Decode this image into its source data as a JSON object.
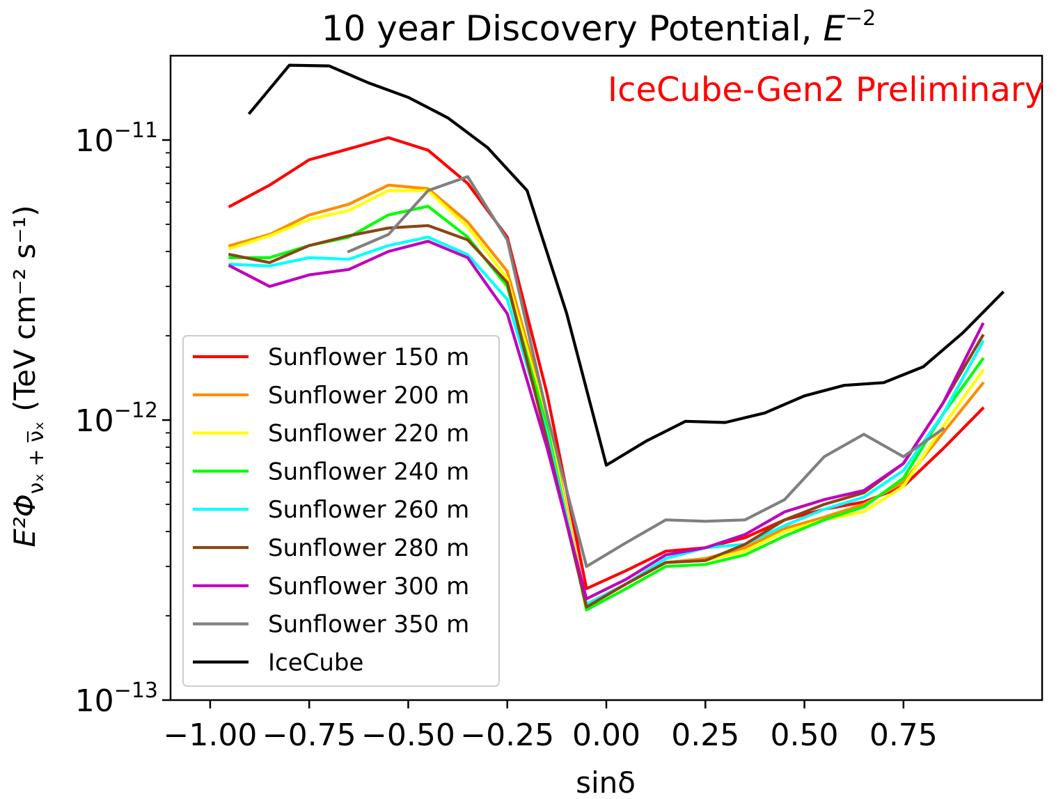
{
  "chart_data": {
    "type": "line",
    "title": "10 year Discovery Potential,",
    "title_math": {
      "base": "E",
      "exponent": "−2"
    },
    "xlabel": "sinδ",
    "ylabel": {
      "prefix": "E²Φ",
      "subscript": "νₓ + ν̅ₓ",
      "units": "(TeV cm⁻² s⁻¹)"
    },
    "annotation": "IceCube-Gen2 Preliminary",
    "xlim": [
      -1.1,
      1.1
    ],
    "ylim": [
      1e-13,
      2e-11
    ],
    "yscale": "log",
    "xticks": [
      {
        "value": -1.0,
        "label": "−1.00"
      },
      {
        "value": -0.75,
        "label": "−0.75"
      },
      {
        "value": -0.5,
        "label": "−0.50"
      },
      {
        "value": -0.25,
        "label": "−0.25"
      },
      {
        "value": 0.0,
        "label": "0.00"
      },
      {
        "value": 0.25,
        "label": "0.25"
      },
      {
        "value": 0.5,
        "label": "0.50"
      },
      {
        "value": 0.75,
        "label": "0.75"
      }
    ],
    "yticks": [
      {
        "value": 1e-13,
        "base": "10",
        "exp": "−13"
      },
      {
        "value": 1e-12,
        "base": "10",
        "exp": "−12"
      },
      {
        "value": 1e-11,
        "base": "10",
        "exp": "−11"
      }
    ],
    "legend_position": "lower-left",
    "series": [
      {
        "name": "Sunflower 150 m",
        "color": "#ff0000",
        "x": [
          -0.95,
          -0.85,
          -0.75,
          -0.65,
          -0.55,
          -0.45,
          -0.35,
          -0.25,
          -0.15,
          -0.05,
          0.05,
          0.15,
          0.25,
          0.35,
          0.45,
          0.55,
          0.65,
          0.75,
          0.85,
          0.95
        ],
        "y": [
          5.8e-12,
          6.9e-12,
          8.5e-12,
          9.3e-12,
          1.02e-11,
          9.2e-12,
          7e-12,
          4.5e-12,
          1.25e-12,
          2.5e-13,
          2.9e-13,
          3.4e-13,
          3.5e-13,
          3.8e-13,
          4.4e-13,
          4.8e-13,
          5.1e-13,
          5.8e-13,
          7.9e-13,
          1.1e-12
        ]
      },
      {
        "name": "Sunflower 200 m",
        "color": "#ff8c00",
        "x": [
          -0.95,
          -0.85,
          -0.75,
          -0.65,
          -0.55,
          -0.45,
          -0.35,
          -0.25,
          -0.15,
          -0.05,
          0.05,
          0.15,
          0.25,
          0.35,
          0.45,
          0.55,
          0.65,
          0.75,
          0.85,
          0.95
        ],
        "y": [
          4.2e-12,
          4.6e-12,
          5.4e-12,
          5.9e-12,
          6.9e-12,
          6.7e-12,
          5.1e-12,
          3.4e-12,
          1.05e-12,
          2.2e-13,
          2.6e-13,
          3.1e-13,
          3.2e-13,
          3.5e-13,
          4.1e-13,
          4.5e-13,
          5e-13,
          6e-13,
          9e-13,
          1.35e-12
        ]
      },
      {
        "name": "Sunflower 220 m",
        "color": "#ffff00",
        "x": [
          -0.95,
          -0.85,
          -0.75,
          -0.65,
          -0.55,
          -0.45,
          -0.35,
          -0.25,
          -0.15,
          -0.05,
          0.05,
          0.15,
          0.25,
          0.35,
          0.45,
          0.55,
          0.65,
          0.75,
          0.85,
          0.95
        ],
        "y": [
          4.1e-12,
          4.55e-12,
          5.2e-12,
          5.6e-12,
          6.6e-12,
          6.6e-12,
          4.9e-12,
          3.2e-12,
          1e-12,
          2.2e-13,
          2.6e-13,
          3.1e-13,
          3.15e-13,
          3.4e-13,
          4e-13,
          4.4e-13,
          4.7e-13,
          5.8e-13,
          9.5e-13,
          1.5e-12
        ]
      },
      {
        "name": "Sunflower 240 m",
        "color": "#00ff00",
        "x": [
          -0.95,
          -0.85,
          -0.75,
          -0.65,
          -0.55,
          -0.45,
          -0.35,
          -0.25,
          -0.15,
          -0.05,
          0.05,
          0.15,
          0.25,
          0.35,
          0.45,
          0.55,
          0.65,
          0.75,
          0.85,
          0.95
        ],
        "y": [
          3.8e-12,
          3.8e-12,
          4.2e-12,
          4.5e-12,
          5.4e-12,
          5.8e-12,
          4.5e-12,
          3e-12,
          9.5e-13,
          2.1e-13,
          2.5e-13,
          3e-13,
          3.05e-13,
          3.3e-13,
          3.85e-13,
          4.4e-13,
          4.9e-13,
          6.2e-13,
          1.05e-12,
          1.65e-12
        ]
      },
      {
        "name": "Sunflower 260 m",
        "color": "#00ffff",
        "x": [
          -0.95,
          -0.85,
          -0.75,
          -0.65,
          -0.55,
          -0.45,
          -0.35,
          -0.25,
          -0.15,
          -0.05,
          0.05,
          0.15,
          0.25,
          0.35,
          0.45,
          0.55,
          0.65,
          0.75,
          0.85,
          0.95
        ],
        "y": [
          3.6e-12,
          3.55e-12,
          3.8e-12,
          3.75e-12,
          4.2e-12,
          4.5e-12,
          3.9e-12,
          2.7e-12,
          9e-13,
          2.2e-13,
          2.6e-13,
          3.2e-13,
          3.5e-13,
          3.6e-13,
          4.2e-13,
          4.8e-13,
          5.3e-13,
          6.6e-13,
          1.05e-12,
          1.9e-12
        ]
      },
      {
        "name": "Sunflower 280 m",
        "color": "#8b4513",
        "x": [
          -0.95,
          -0.85,
          -0.75,
          -0.65,
          -0.55,
          -0.45,
          -0.35,
          -0.25,
          -0.15,
          -0.05,
          0.05,
          0.15,
          0.25,
          0.35,
          0.45,
          0.55,
          0.65,
          0.75,
          0.85,
          0.95
        ],
        "y": [
          3.9e-12,
          3.65e-12,
          4.2e-12,
          4.55e-12,
          4.85e-12,
          4.95e-12,
          4.4e-12,
          3.1e-12,
          8.5e-13,
          2.15e-13,
          2.6e-13,
          3.1e-13,
          3.15e-13,
          3.6e-13,
          4.4e-13,
          5e-13,
          5.5e-13,
          7e-13,
          1.15e-12,
          2e-12
        ]
      },
      {
        "name": "Sunflower 300 m",
        "color": "#bf00bf",
        "x": [
          -0.95,
          -0.85,
          -0.75,
          -0.65,
          -0.55,
          -0.45,
          -0.35,
          -0.25,
          -0.15,
          -0.05,
          0.05,
          0.15,
          0.25,
          0.35,
          0.45,
          0.55,
          0.65,
          0.75,
          0.85,
          0.95
        ],
        "y": [
          3.55e-12,
          3e-12,
          3.3e-12,
          3.45e-12,
          4e-12,
          4.35e-12,
          3.8e-12,
          2.4e-12,
          8e-13,
          2.3e-13,
          2.7e-13,
          3.3e-13,
          3.5e-13,
          3.9e-13,
          4.7e-13,
          5.2e-13,
          5.6e-13,
          7e-13,
          1.15e-12,
          2.2e-12
        ]
      },
      {
        "name": "Sunflower 350 m",
        "color": "#808080",
        "x": [
          -0.65,
          -0.55,
          -0.45,
          -0.35,
          -0.25,
          -0.15,
          -0.05,
          0.05,
          0.15,
          0.25,
          0.35,
          0.45,
          0.55,
          0.65,
          0.75,
          0.85
        ],
        "y": [
          4e-12,
          4.6e-12,
          6.6e-12,
          7.4e-12,
          4.4e-12,
          1.05e-12,
          3e-13,
          3.65e-13,
          4.4e-13,
          4.35e-13,
          4.4e-13,
          5.2e-13,
          7.4e-13,
          8.9e-13,
          7.4e-13,
          9.3e-13
        ]
      },
      {
        "name": "IceCube",
        "color": "#000000",
        "x": [
          -0.9,
          -0.8,
          -0.7,
          -0.6,
          -0.5,
          -0.4,
          -0.3,
          -0.2,
          -0.1,
          0.0,
          0.1,
          0.2,
          0.3,
          0.4,
          0.5,
          0.6,
          0.7,
          0.8,
          0.9,
          1.0
        ],
        "y": [
          1.25e-11,
          1.85e-11,
          1.84e-11,
          1.6e-11,
          1.42e-11,
          1.2e-11,
          9.4e-12,
          6.6e-12,
          2.4e-12,
          6.9e-13,
          8.4e-13,
          9.9e-13,
          9.8e-13,
          1.06e-12,
          1.22e-12,
          1.33e-12,
          1.36e-12,
          1.55e-12,
          2.05e-12,
          2.85e-12
        ]
      }
    ]
  }
}
